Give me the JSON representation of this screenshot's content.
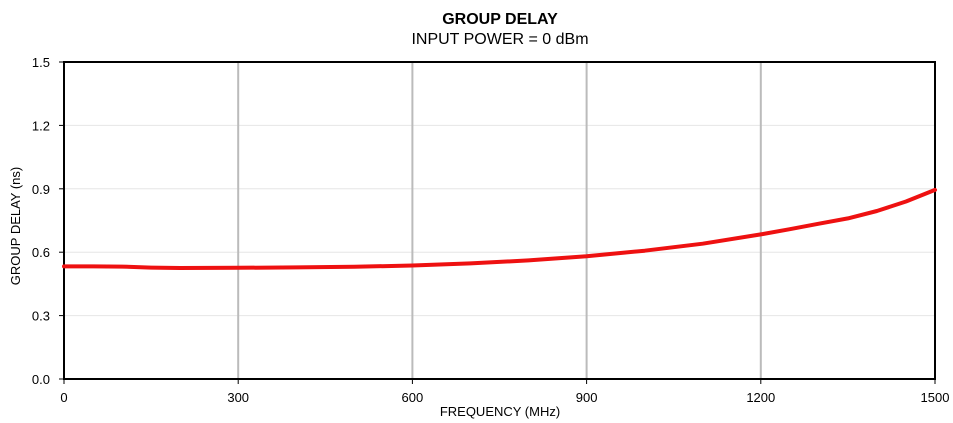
{
  "chart_data": {
    "type": "line",
    "title": "GROUP DELAY",
    "subtitle": "INPUT POWER = 0 dBm",
    "xlabel": "FREQUENCY (MHz)",
    "ylabel": "GROUP DELAY (ns)",
    "xlim": [
      0,
      1500
    ],
    "ylim": [
      0,
      1.5
    ],
    "x_ticks": [
      0,
      300,
      600,
      900,
      1200,
      1500
    ],
    "y_ticks": [
      0.0,
      0.3,
      0.6,
      0.9,
      1.2,
      1.5
    ],
    "x_tick_labels": [
      "0",
      "300",
      "600",
      "900",
      "1200",
      "1500"
    ],
    "y_tick_labels": [
      "0.0",
      "0.3",
      "0.6",
      "0.9",
      "1.2",
      "1.5"
    ],
    "grid": {
      "vertical": true,
      "horizontal": true
    },
    "colors": {
      "line": "#ee1111",
      "vertical_grid": "#bbbbbb",
      "horizontal_grid": "#e6e6e6",
      "axis": "#000000"
    },
    "series": [
      {
        "x": [
          0,
          50,
          100,
          150,
          200,
          300,
          400,
          500,
          600,
          700,
          800,
          900,
          1000,
          1100,
          1200,
          1250,
          1300,
          1350,
          1400,
          1450,
          1500
        ],
        "y": [
          0.533,
          0.533,
          0.532,
          0.527,
          0.525,
          0.526,
          0.528,
          0.531,
          0.537,
          0.547,
          0.561,
          0.581,
          0.607,
          0.64,
          0.684,
          0.709,
          0.735,
          0.76,
          0.795,
          0.84,
          0.895
        ]
      }
    ]
  }
}
